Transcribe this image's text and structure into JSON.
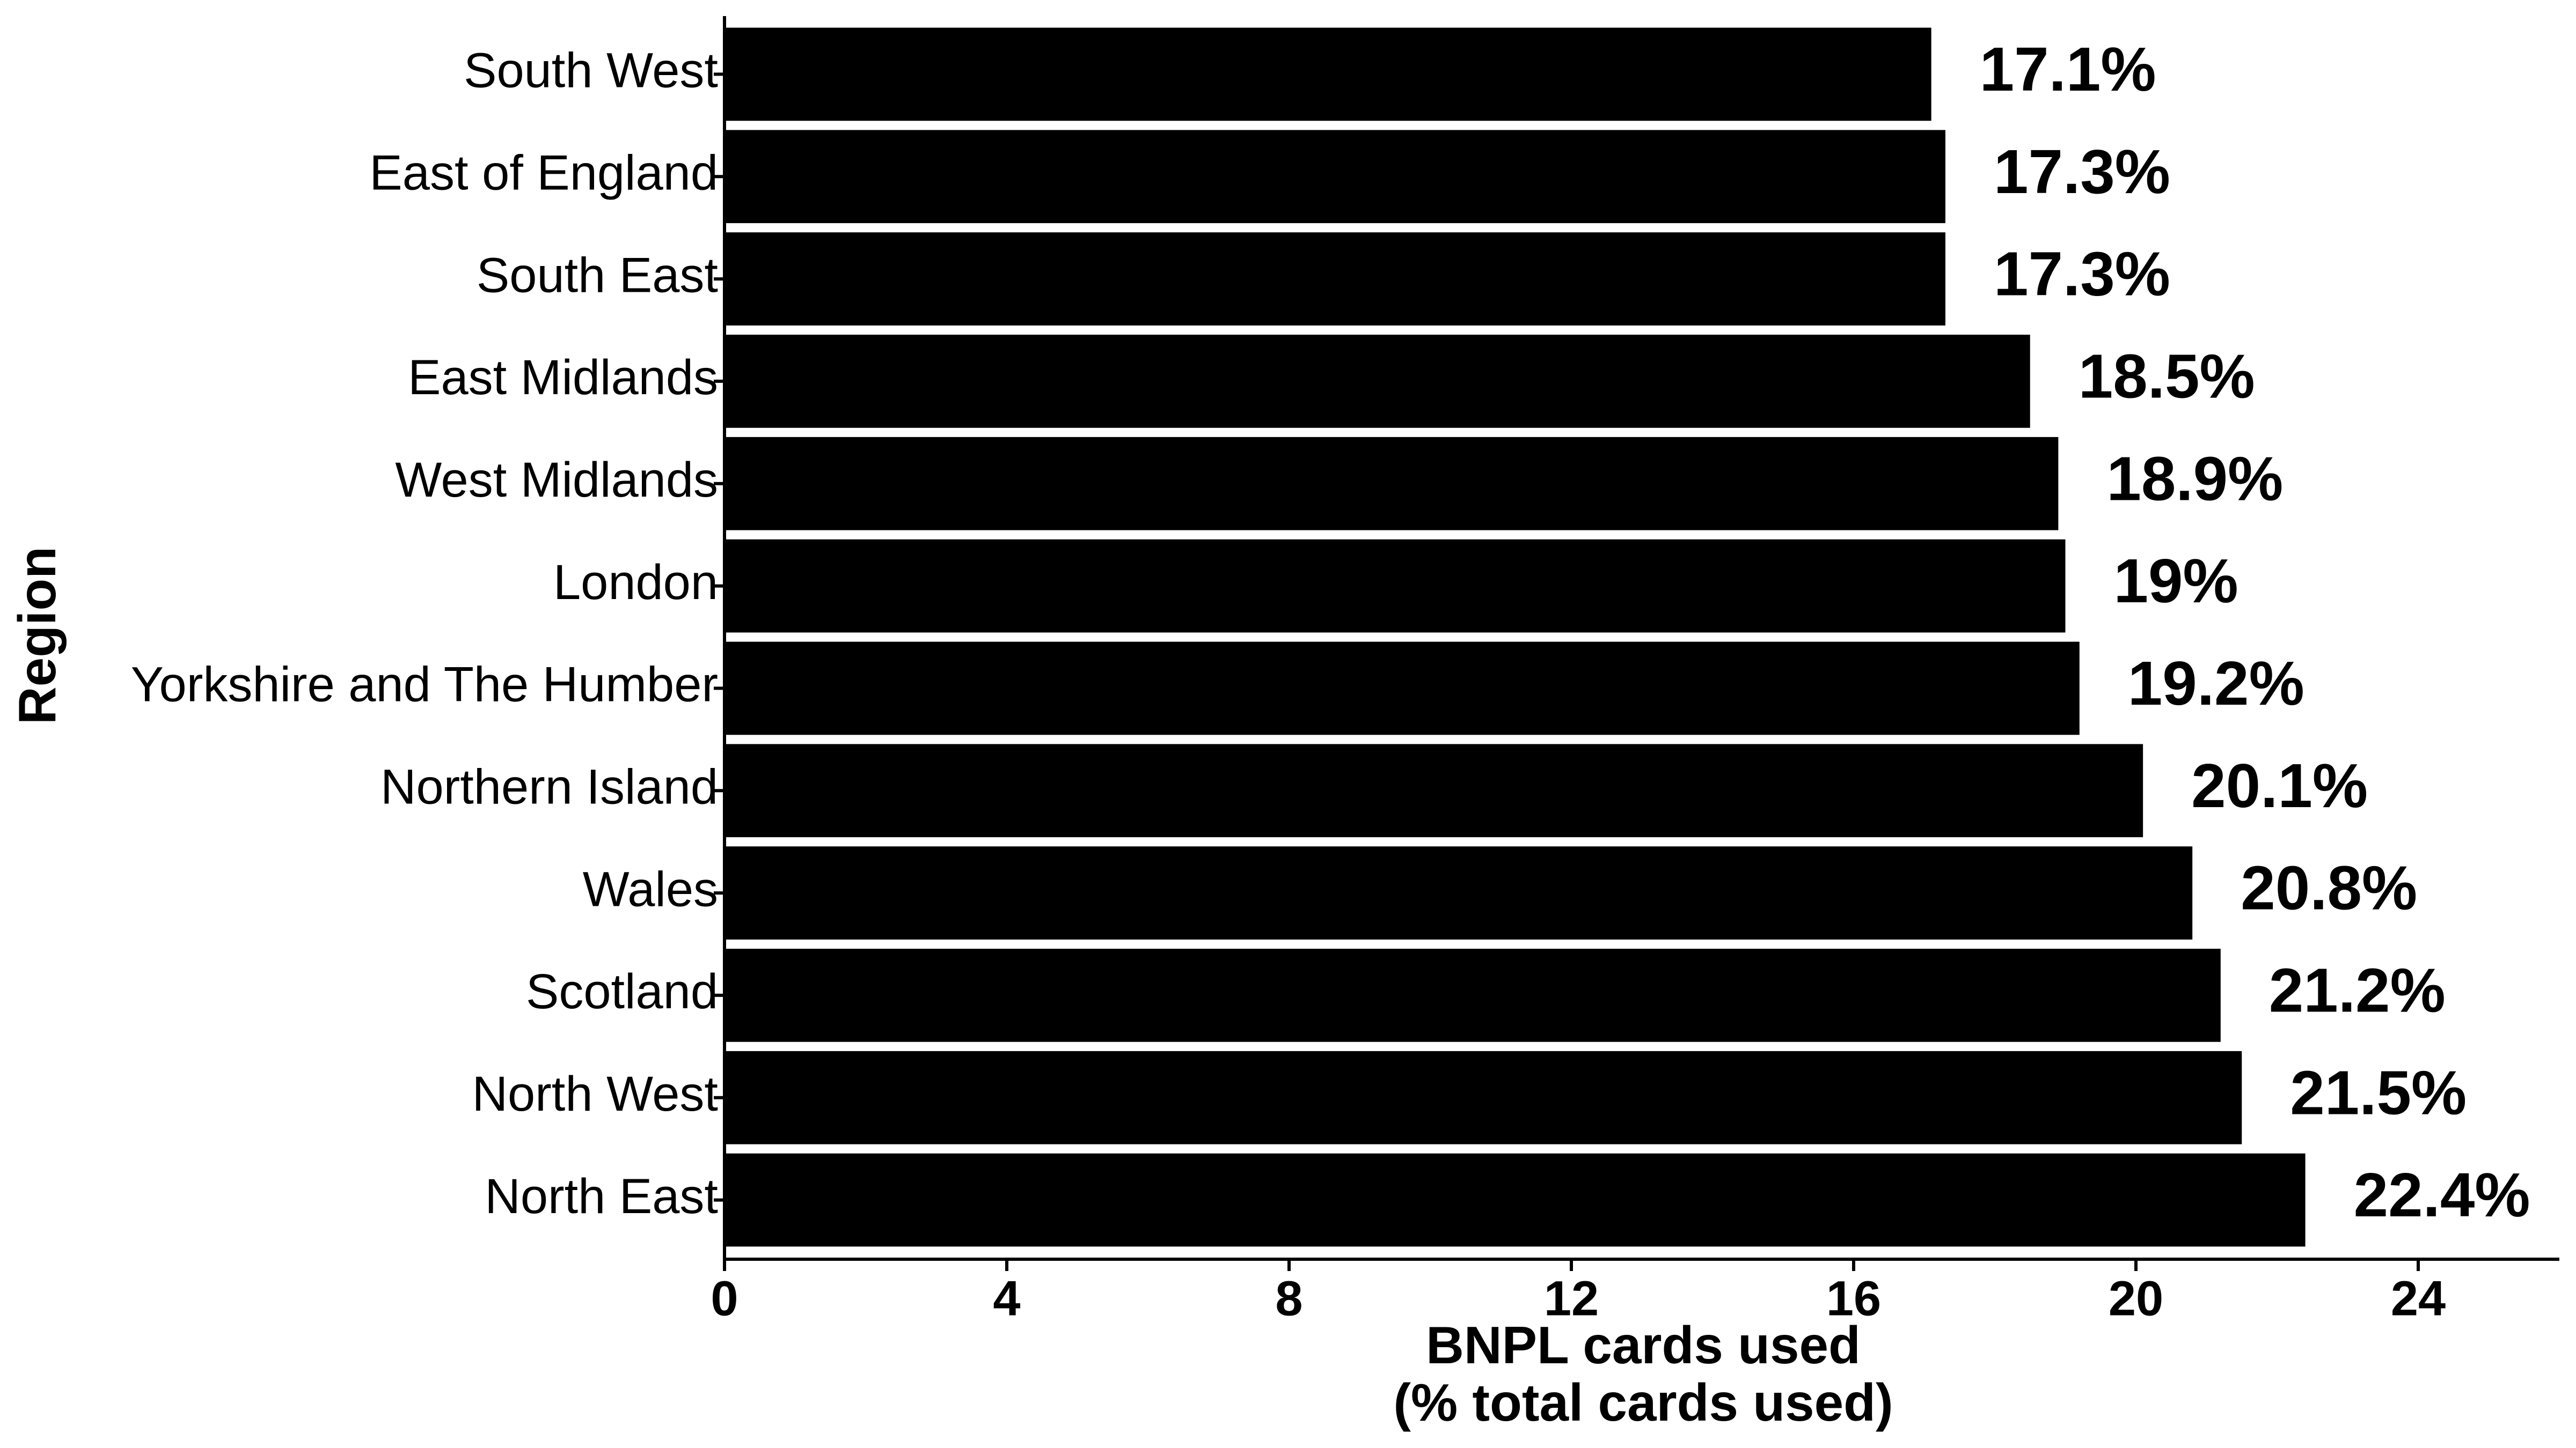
{
  "chart_data": {
    "type": "bar",
    "orientation": "horizontal",
    "x_label": [
      "BNPL cards used",
      "(% total cards used)"
    ],
    "y_label": "Region",
    "categories": [
      "South West",
      "East of England",
      "South East",
      "East Midlands",
      "West Midlands",
      "London",
      "Yorkshire and The Humber",
      "Northern Island",
      "Wales",
      "Scotland",
      "North West",
      "North East"
    ],
    "values": [
      17.1,
      17.3,
      17.3,
      18.5,
      18.9,
      19,
      19.2,
      20.1,
      20.8,
      21.2,
      21.5,
      22.4
    ],
    "value_labels": [
      "17.1%",
      "17.3%",
      "17.3%",
      "18.5%",
      "18.9%",
      "19%",
      "19.2%",
      "20.1%",
      "20.8%",
      "21.2%",
      "21.5%",
      "22.4%"
    ],
    "color": "#000000",
    "xlim": [
      0,
      26
    ],
    "xticks": [
      0,
      4,
      8,
      12,
      16,
      20,
      24
    ],
    "grid": false
  }
}
